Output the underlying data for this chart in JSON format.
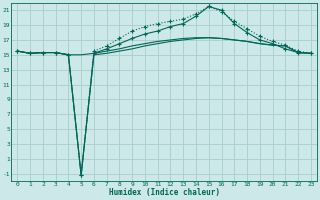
{
  "xlabel": "Humidex (Indice chaleur)",
  "background_color": "#cce8e8",
  "grid_color": "#aacccc",
  "line_color": "#006655",
  "xlim": [
    -0.5,
    23.5
  ],
  "ylim": [
    -2,
    22
  ],
  "xticks": [
    0,
    1,
    2,
    3,
    4,
    5,
    6,
    7,
    8,
    9,
    10,
    11,
    12,
    13,
    14,
    15,
    16,
    17,
    18,
    19,
    20,
    21,
    22,
    23
  ],
  "yticks": [
    -1,
    1,
    3,
    5,
    7,
    9,
    11,
    13,
    15,
    17,
    19,
    21
  ],
  "line1_x": [
    0,
    1,
    2,
    3,
    4,
    5,
    6,
    7,
    8,
    9,
    10,
    11,
    12,
    13,
    14,
    15,
    16,
    17,
    18,
    19,
    20,
    21,
    22,
    23
  ],
  "line1_y": [
    15.5,
    15.2,
    15.3,
    15.3,
    15.0,
    15.0,
    15.2,
    15.5,
    15.8,
    16.2,
    16.5,
    16.8,
    17.0,
    17.2,
    17.3,
    17.3,
    17.2,
    17.0,
    16.8,
    16.5,
    16.3,
    16.2,
    15.3,
    15.2
  ],
  "line2_x": [
    0,
    1,
    2,
    3,
    4,
    5,
    6,
    7,
    8,
    9,
    10,
    11,
    12,
    13,
    14,
    15,
    16,
    17,
    18,
    19,
    20,
    21,
    22,
    23
  ],
  "line2_y": [
    15.5,
    15.2,
    15.3,
    15.3,
    15.0,
    -1.2,
    15.0,
    15.2,
    15.5,
    15.8,
    16.2,
    16.5,
    16.8,
    17.0,
    17.2,
    17.3,
    17.2,
    17.0,
    16.8,
    16.5,
    16.3,
    16.2,
    15.3,
    15.2
  ],
  "line3_x": [
    0,
    1,
    2,
    3,
    4,
    5,
    6,
    7,
    8,
    9,
    10,
    11,
    12,
    13,
    14,
    15,
    16,
    17,
    18,
    19,
    20,
    21,
    22,
    23
  ],
  "line3_y": [
    15.5,
    15.2,
    15.3,
    15.3,
    15.0,
    -1.2,
    15.5,
    16.2,
    17.2,
    18.2,
    18.8,
    19.2,
    19.5,
    19.8,
    20.5,
    21.5,
    20.8,
    19.5,
    18.5,
    17.5,
    16.8,
    16.3,
    15.5,
    15.2
  ],
  "line4_x": [
    0,
    1,
    2,
    3,
    4,
    5,
    6,
    7,
    8,
    9,
    10,
    11,
    12,
    13,
    14,
    15,
    16,
    17,
    18,
    19,
    20,
    21,
    22,
    23
  ],
  "line4_y": [
    15.5,
    15.2,
    15.3,
    15.3,
    15.0,
    -1.2,
    15.2,
    15.8,
    16.5,
    17.2,
    17.8,
    18.2,
    18.8,
    19.2,
    20.2,
    21.5,
    21.0,
    19.2,
    18.0,
    17.0,
    16.5,
    15.8,
    15.3,
    15.2
  ],
  "line1_marker": false,
  "line2_marker": false,
  "line3_marker": true,
  "line4_marker": true,
  "line3_dotted": true
}
